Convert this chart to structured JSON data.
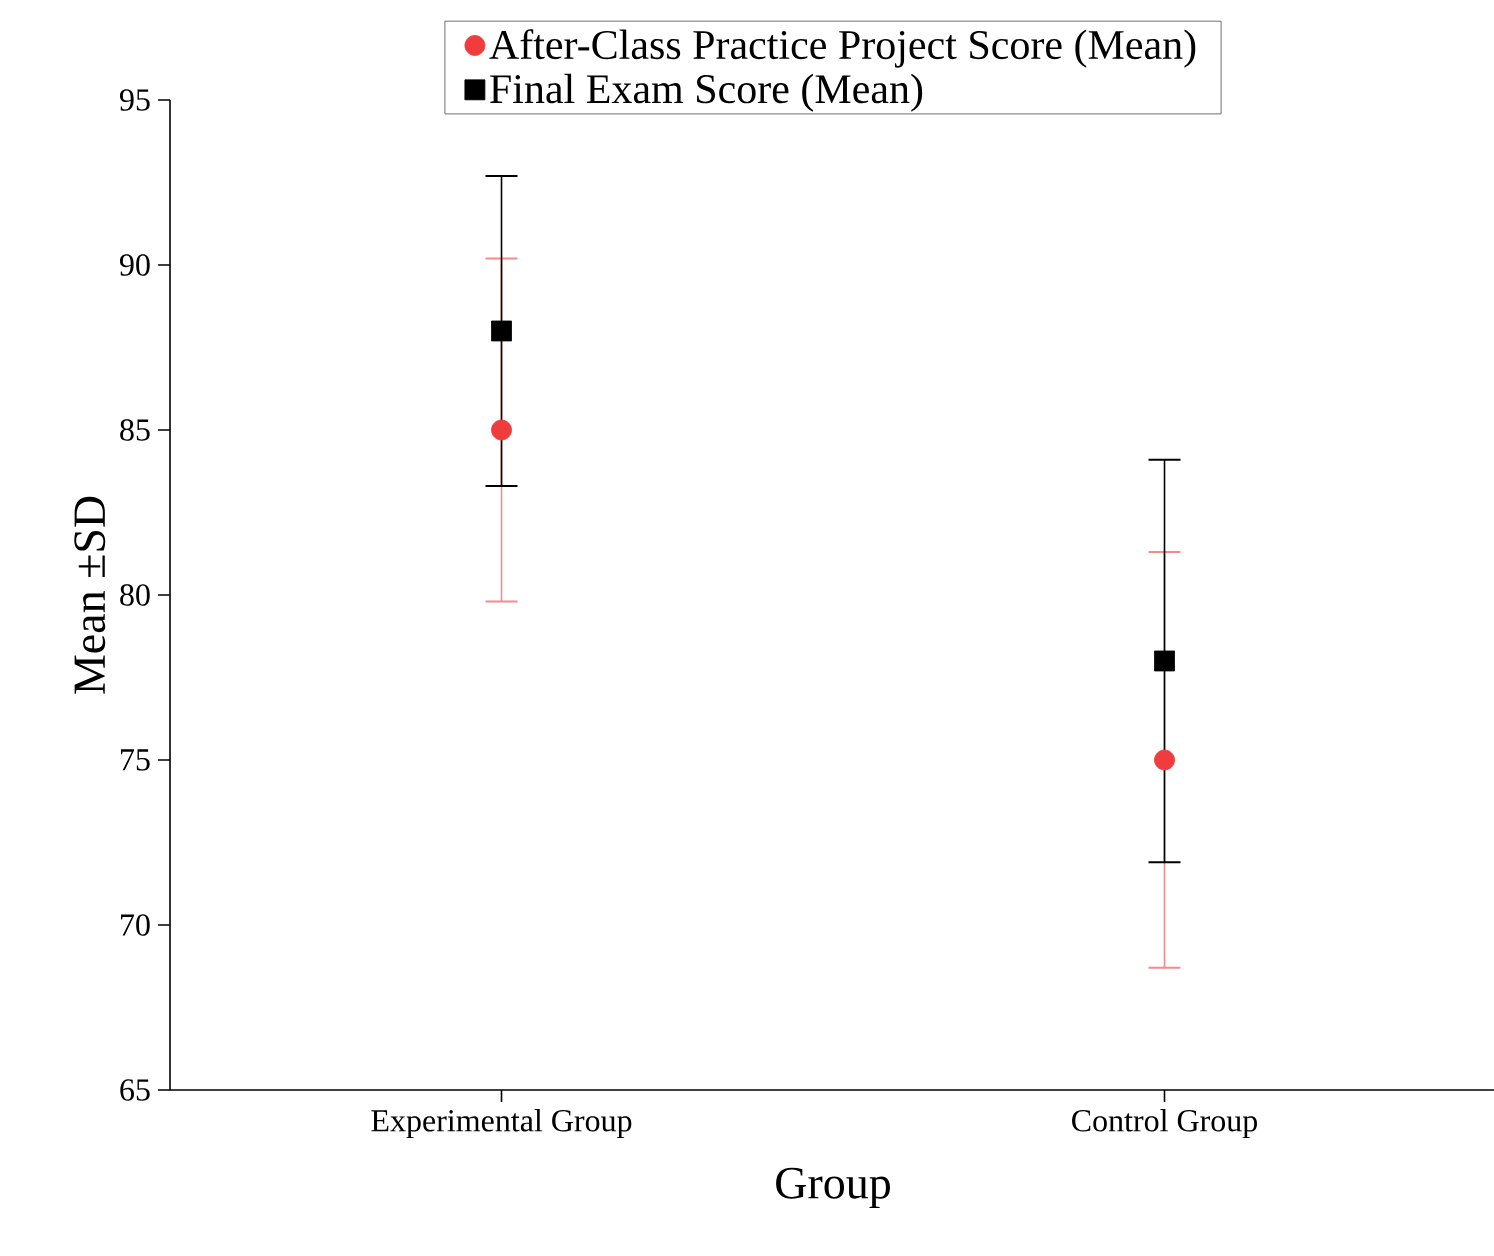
{
  "chart_data": {
    "type": "scatter",
    "xlabel": "Group",
    "ylabel": "Mean ±SD",
    "categories": [
      "Experimental Group",
      "Control Group"
    ],
    "series": [
      {
        "name": "After-Class Practice Project Score (Mean)",
        "color": "#f03c3c",
        "marker": "circle",
        "values": [
          85,
          75
        ],
        "errors": [
          5.2,
          6.3
        ]
      },
      {
        "name": "Final Exam Score (Mean)",
        "color": "#000000",
        "marker": "square",
        "values": [
          88,
          78
        ],
        "errors": [
          4.7,
          6.1
        ]
      }
    ],
    "ylim": [
      65,
      95
    ],
    "yticks": [
      65,
      70,
      75,
      80,
      85,
      90,
      95
    ],
    "grid": false,
    "legend": "top"
  }
}
